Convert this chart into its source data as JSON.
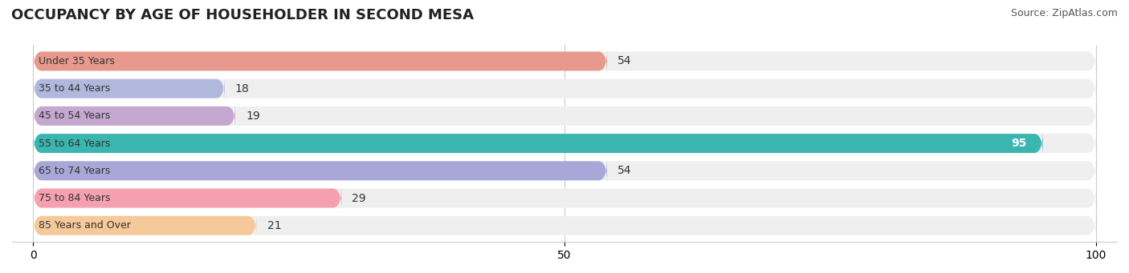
{
  "title": "OCCUPANCY BY AGE OF HOUSEHOLDER IN SECOND MESA",
  "source": "Source: ZipAtlas.com",
  "categories": [
    "Under 35 Years",
    "35 to 44 Years",
    "45 to 54 Years",
    "55 to 64 Years",
    "65 to 74 Years",
    "75 to 84 Years",
    "85 Years and Over"
  ],
  "values": [
    54,
    18,
    19,
    95,
    54,
    29,
    21
  ],
  "bar_colors": [
    "#e8998d",
    "#b0b8dc",
    "#c4a8d0",
    "#3ab5b0",
    "#a8a8d8",
    "#f4a0b0",
    "#f5c99a"
  ],
  "bar_bg_color": "#efefef",
  "xlim": [
    0,
    100
  ],
  "label_color_dark": "#333333",
  "label_color_light": "#ffffff",
  "title_fontsize": 13,
  "source_fontsize": 9,
  "tick_fontsize": 10,
  "bar_label_fontsize": 10,
  "category_fontsize": 9,
  "fig_width": 14.06,
  "fig_height": 3.41,
  "dpi": 100
}
